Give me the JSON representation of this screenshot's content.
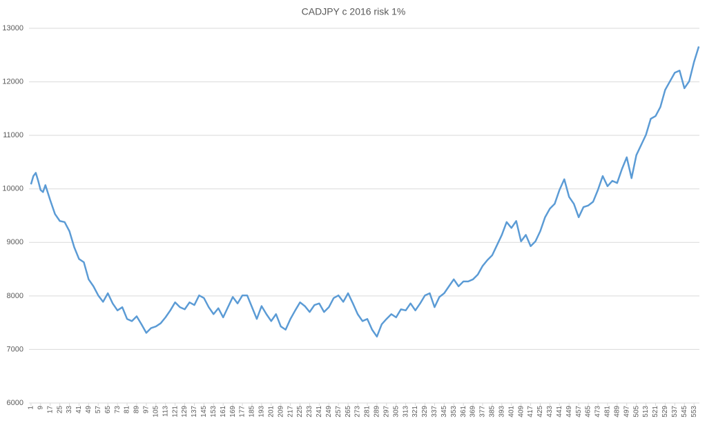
{
  "chart_data": {
    "type": "line",
    "title": "CADJPY c 2016 risk 1%",
    "grid": true,
    "xlim": [
      0.5,
      557.5
    ],
    "ylim": [
      6000,
      13000
    ],
    "yticks": [
      6000,
      7000,
      8000,
      9000,
      10000,
      11000,
      12000,
      13000
    ],
    "xticks": [
      1,
      9,
      17,
      25,
      33,
      41,
      49,
      57,
      65,
      73,
      81,
      89,
      97,
      105,
      113,
      121,
      129,
      137,
      145,
      153,
      161,
      169,
      177,
      185,
      193,
      201,
      209,
      217,
      225,
      233,
      241,
      249,
      257,
      265,
      273,
      281,
      289,
      297,
      305,
      313,
      321,
      329,
      337,
      345,
      353,
      361,
      369,
      377,
      385,
      393,
      401,
      409,
      417,
      425,
      433,
      441,
      449,
      457,
      465,
      473,
      481,
      489,
      497,
      505,
      513,
      521,
      529,
      537,
      545,
      553
    ],
    "series": [
      {
        "color": "#5b9bd5",
        "x": [
          1,
          3,
          5,
          7,
          9,
          11,
          13,
          17,
          21,
          25,
          29,
          33,
          37,
          41,
          45,
          49,
          53,
          57,
          61,
          65,
          69,
          73,
          77,
          81,
          85,
          89,
          93,
          97,
          101,
          105,
          109,
          113,
          117,
          121,
          125,
          129,
          133,
          137,
          141,
          145,
          149,
          153,
          157,
          161,
          165,
          169,
          173,
          177,
          181,
          185,
          189,
          193,
          197,
          201,
          205,
          209,
          213,
          217,
          221,
          225,
          229,
          233,
          237,
          241,
          245,
          249,
          253,
          257,
          261,
          265,
          269,
          273,
          277,
          281,
          285,
          289,
          293,
          297,
          301,
          305,
          309,
          313,
          317,
          321,
          325,
          329,
          333,
          337,
          341,
          345,
          349,
          353,
          357,
          361,
          365,
          369,
          373,
          377,
          381,
          385,
          389,
          393,
          397,
          401,
          405,
          409,
          413,
          417,
          421,
          425,
          429,
          433,
          437,
          441,
          445,
          449,
          453,
          457,
          461,
          465,
          469,
          473,
          477,
          481,
          485,
          489,
          493,
          497,
          501,
          505,
          509,
          513,
          517,
          521,
          525,
          529,
          533,
          537,
          541,
          545,
          549,
          553,
          557
        ],
        "values": [
          10085,
          10240,
          10300,
          10150,
          9980,
          9940,
          10070,
          9790,
          9530,
          9400,
          9380,
          9210,
          8910,
          8690,
          8630,
          8310,
          8180,
          8010,
          7890,
          8050,
          7860,
          7730,
          7790,
          7570,
          7530,
          7620,
          7470,
          7310,
          7400,
          7430,
          7490,
          7600,
          7730,
          7880,
          7790,
          7750,
          7880,
          7830,
          8010,
          7960,
          7790,
          7660,
          7770,
          7600,
          7790,
          7980,
          7860,
          8010,
          8010,
          7790,
          7570,
          7810,
          7660,
          7530,
          7660,
          7430,
          7370,
          7570,
          7730,
          7880,
          7810,
          7700,
          7830,
          7860,
          7700,
          7790,
          7960,
          8010,
          7890,
          8050,
          7860,
          7660,
          7530,
          7570,
          7370,
          7240,
          7470,
          7570,
          7660,
          7600,
          7750,
          7730,
          7860,
          7730,
          7860,
          8010,
          8050,
          7790,
          7980,
          8050,
          8180,
          8310,
          8180,
          8270,
          8270,
          8310,
          8400,
          8560,
          8670,
          8760,
          8950,
          9140,
          9380,
          9270,
          9400,
          9020,
          9140,
          8930,
          9020,
          9210,
          9470,
          9630,
          9720,
          9980,
          10180,
          9850,
          9720,
          9470,
          9660,
          9690,
          9760,
          9980,
          10240,
          10050,
          10150,
          10110,
          10370,
          10590,
          10200,
          10630,
          10820,
          11010,
          11310,
          11360,
          11530,
          11850,
          12010,
          12170,
          12210,
          11880,
          12010,
          12370,
          12660
        ]
      }
    ]
  }
}
